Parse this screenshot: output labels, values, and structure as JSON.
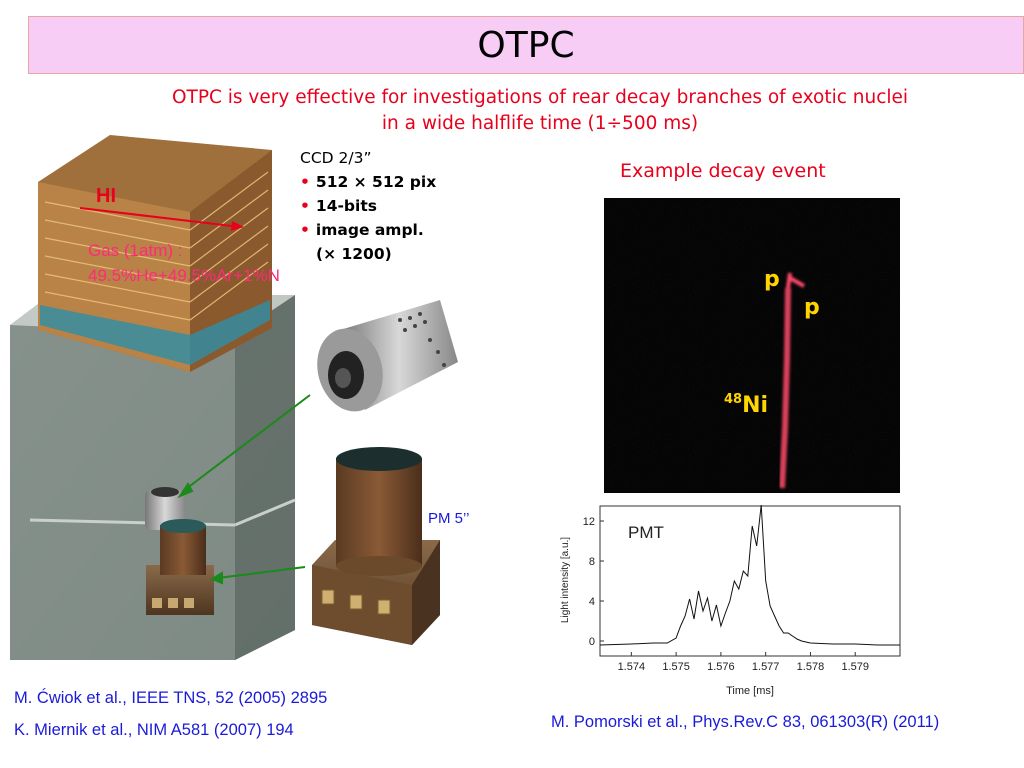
{
  "slide": {
    "title": "OTPC",
    "subtitle_line1": "OTPC is very effective for investigations of rear decay branches of exotic nuclei",
    "subtitle_line2": "in a wide halflife time (1÷500 ms)",
    "ccd": {
      "heading": "CCD 2/3”",
      "bullets": [
        "512 × 512 pix",
        "14-bits",
        "image ampl."
      ],
      "bullet3_cont": "(× 1200)"
    },
    "example_label": "Example decay event",
    "hi_label": "HI",
    "gas_line1": "Gas (1atm) :",
    "gas_line2": "49.5%He+49.5%Ar+1%N",
    "pm_label": "PM 5’’",
    "decay_labels": {
      "p1": "p",
      "p2": "p",
      "ni_sup": "48",
      "ni": "Ni"
    },
    "refs": [
      "M. Ćwiok et al., IEEE TNS, 52 (2005) 2895",
      "K. Miernik et al., NIM A581 (2007) 194",
      "M. Pomorski et al., Phys.Rev.C 83, 061303(R) (2011)"
    ]
  },
  "chart_data": {
    "type": "line",
    "title": "PMT",
    "xlabel": "Time [ms]",
    "ylabel": "Light intensity [a.u.]",
    "xlim": [
      1.5733,
      1.58
    ],
    "ylim": [
      -1.5,
      13.5
    ],
    "xticks": [
      1.574,
      1.575,
      1.576,
      1.577,
      1.578,
      1.579
    ],
    "xtick_labels": [
      "1.574",
      "1.575",
      "1.576",
      "1.577",
      "1.578",
      "1.579"
    ],
    "yticks": [
      0,
      4,
      8,
      12
    ],
    "ytick_labels": [
      "0",
      "4",
      "8",
      "12"
    ],
    "series": [
      {
        "x": [
          1.5733,
          1.574,
          1.5745,
          1.5748,
          1.575,
          1.5751,
          1.5752,
          1.5753,
          1.5754,
          1.5755,
          1.5756,
          1.5757,
          1.5758,
          1.5759,
          1.576,
          1.5761,
          1.5762,
          1.5763,
          1.5764,
          1.5765,
          1.5766,
          1.5767,
          1.5768,
          1.5769,
          1.577,
          1.5771,
          1.5772,
          1.5773,
          1.5774,
          1.5775,
          1.5776,
          1.5777,
          1.5778,
          1.578,
          1.5785,
          1.579,
          1.5795,
          1.58
        ],
        "y": [
          -0.4,
          -0.3,
          -0.2,
          -0.2,
          0.3,
          1.5,
          2.5,
          4.2,
          2.2,
          5.0,
          3.0,
          4.3,
          2.0,
          3.6,
          1.5,
          2.8,
          4.0,
          6.0,
          5.2,
          7.0,
          6.5,
          11.5,
          9.5,
          13.6,
          6.0,
          3.5,
          2.5,
          1.5,
          0.8,
          0.8,
          0.5,
          0.2,
          0.0,
          -0.2,
          -0.3,
          -0.3,
          -0.4,
          -0.4
        ]
      }
    ]
  }
}
